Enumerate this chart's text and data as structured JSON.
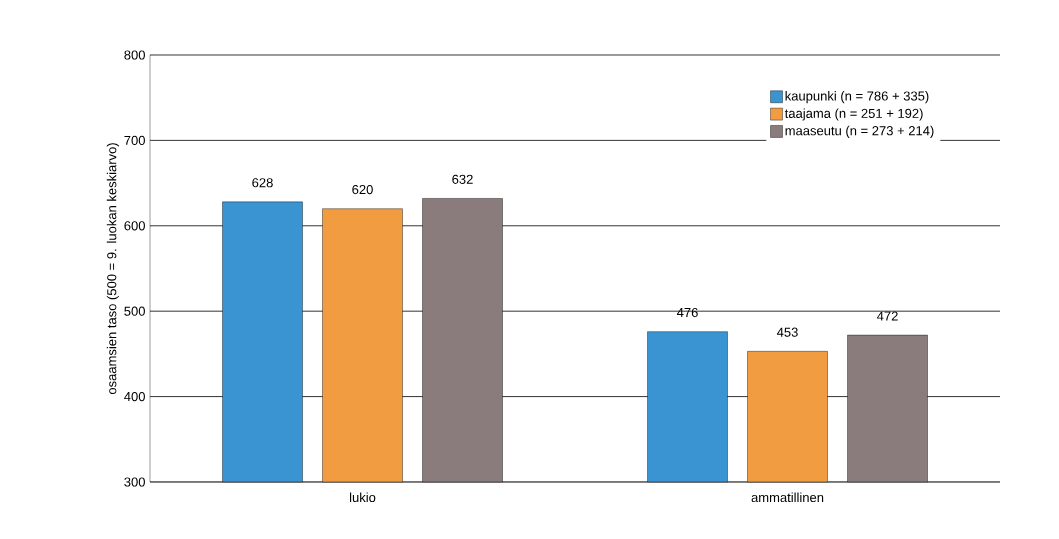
{
  "chart_data": {
    "type": "bar",
    "ylabel": "osaamsien taso (500 = 9. luokan keskiarvo)",
    "categories": [
      "lukio",
      "ammatillinen"
    ],
    "series": [
      {
        "name": "kaupunki (n = 786 + 335)",
        "color": "#3a94d2",
        "values": [
          628,
          476
        ]
      },
      {
        "name": "taajama (n = 251 + 192)",
        "color": "#f19c41",
        "values": [
          620,
          453
        ]
      },
      {
        "name": "maaseutu (n = 273 + 214)",
        "color": "#8a7b7c",
        "values": [
          632,
          472
        ]
      }
    ],
    "ylim": [
      300,
      800
    ],
    "yticks": [
      300,
      400,
      500,
      600,
      700,
      800
    ],
    "grid": "y",
    "legend": "top right",
    "data_labels": true
  }
}
